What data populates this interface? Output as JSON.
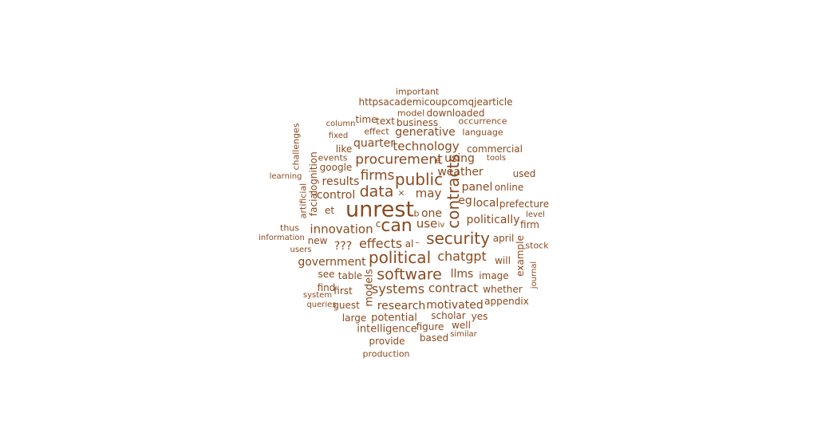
{
  "word_color": "#8B4A1F",
  "words": [
    "important",
    "httpsacademicoupcomqjearticle",
    "model",
    "downloaded",
    "time",
    "text",
    "business",
    "occurrence",
    "column",
    "effect",
    "generative",
    "language",
    "fixed",
    "quarter",
    "technology",
    "like",
    "commercial",
    "events",
    "procurement",
    "using",
    "tools",
    "google",
    "weather",
    "used",
    "learning",
    "firms",
    "public",
    "results",
    "contracts",
    "data",
    "may",
    "panel",
    "online",
    "control",
    "eg",
    "local",
    "prefecture",
    "unrest",
    "et",
    "b",
    "one",
    "level",
    "c",
    "can",
    "politically",
    "firm",
    "thus",
    "innovation",
    "iv",
    "use",
    "information",
    "security",
    "april",
    "new",
    "effects",
    "al",
    "stock",
    "users",
    "chatgpt",
    "will",
    "government",
    "political",
    "see",
    "table",
    "software",
    "llms",
    "image",
    "journal",
    "find",
    "first",
    "systems",
    "contract",
    "whether",
    "system",
    "queries",
    "guest",
    "research",
    "motivated",
    "appendix",
    "large",
    "potential",
    "scholar",
    "yes",
    "intelligence",
    "figure",
    "well",
    "based",
    "similar",
    "provide",
    "production",
    "challenges",
    "cognition",
    "artificial",
    "facial",
    "example",
    "models",
    "e",
    "×",
    "–",
    "???"
  ]
}
